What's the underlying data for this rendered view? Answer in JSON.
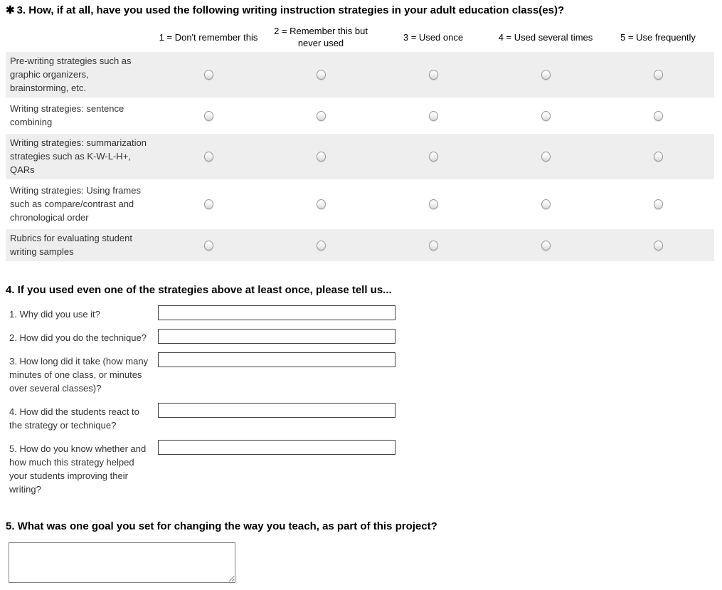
{
  "q3": {
    "required_marker": "✱",
    "title": "3. How, if at all, have you used the following writing instruction strategies in your adult education class(es)?",
    "columns": [
      "1 = Don't remember this",
      "2 = Remember this but never used",
      "3 = Used once",
      "4 = Used several times",
      "5 = Use frequently"
    ],
    "rows": [
      "Pre-writing strategies such as graphic organizers, brainstorming, etc.",
      "Writing strategies: sentence combining",
      "Writing strategies: summarization strategies such as K-W-L-H+, QARs",
      "Writing strategies: Using frames such as compare/contrast and chronological order",
      "Rubrics for evaluating student writing samples"
    ]
  },
  "q4": {
    "title": "4. If you used even one of the strategies above at least once, please tell us...",
    "items": [
      {
        "label": "1. Why did you use it?",
        "value": ""
      },
      {
        "label": "2. How did you do the technique?",
        "value": ""
      },
      {
        "label": "3. How long did it take (how many minutes of one class, or minutes over several classes)?",
        "value": ""
      },
      {
        "label": "4. How did the students react to the strategy or technique?",
        "value": ""
      },
      {
        "label": "5. How do you know whether and how much this strategy helped your students improving their writing?",
        "value": ""
      }
    ]
  },
  "q5": {
    "title": "5. What was one goal you set for changing the way you teach, as part of this project?",
    "value": ""
  },
  "colors": {
    "row_shade": "#eeeeee",
    "text": "#333333"
  }
}
